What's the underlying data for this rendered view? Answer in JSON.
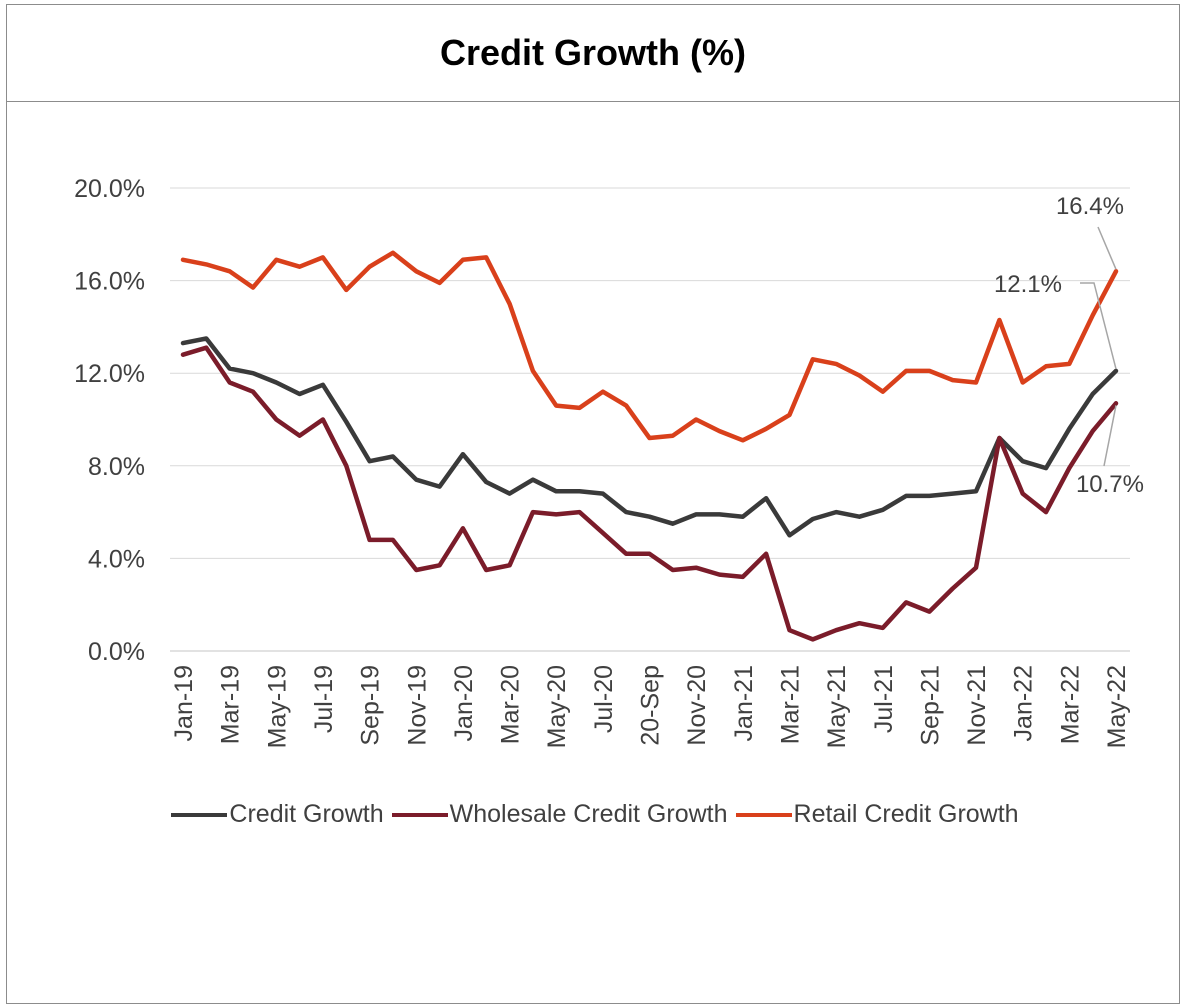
{
  "chart_data": {
    "type": "line",
    "title": "Credit Growth (%)",
    "xlabel": "",
    "ylabel": "",
    "ylim": [
      0,
      20
    ],
    "yticks": [
      "0.0%",
      "4.0%",
      "8.0%",
      "12.0%",
      "16.0%",
      "20.0%"
    ],
    "ytick_values": [
      0,
      4,
      8,
      12,
      16,
      20
    ],
    "x": [
      "Jan-19",
      "Feb-19",
      "Mar-19",
      "Apr-19",
      "May-19",
      "Jun-19",
      "Jul-19",
      "Aug-19",
      "Sep-19",
      "Oct-19",
      "Nov-19",
      "Dec-19",
      "Jan-20",
      "Feb-20",
      "Mar-20",
      "Apr-20",
      "May-20",
      "Jun-20",
      "Jul-20",
      "Aug-20",
      "20-Sep",
      "Oct-20",
      "Nov-20",
      "Dec-20",
      "Jan-21",
      "Feb-21",
      "Mar-21",
      "Apr-21",
      "May-21",
      "Jun-21",
      "Jul-21",
      "Aug-21",
      "Sep-21",
      "Oct-21",
      "Nov-21",
      "Dec-21",
      "Jan-22",
      "Feb-22",
      "Mar-22",
      "Apr-22",
      "May-22"
    ],
    "x_tick_labels": [
      "Jan-19",
      "Mar-19",
      "May-19",
      "Jul-19",
      "Sep-19",
      "Nov-19",
      "Jan-20",
      "Mar-20",
      "May-20",
      "Jul-20",
      "20-Sep",
      "Nov-20",
      "Jan-21",
      "Mar-21",
      "May-21",
      "Jul-21",
      "Sep-21",
      "Nov-21",
      "Jan-22",
      "Mar-22",
      "May-22"
    ],
    "grid": true,
    "legend_position": "bottom",
    "series": [
      {
        "name": "Credit Growth",
        "color": "#3a3a3a",
        "values": [
          13.3,
          13.5,
          12.2,
          12.0,
          11.6,
          11.1,
          11.5,
          9.9,
          8.2,
          8.4,
          7.4,
          7.1,
          8.5,
          7.3,
          6.8,
          7.4,
          6.9,
          6.9,
          6.8,
          6.0,
          5.8,
          5.5,
          5.9,
          5.9,
          5.8,
          6.6,
          5.0,
          5.7,
          6.0,
          5.8,
          6.1,
          6.7,
          6.7,
          6.8,
          6.9,
          9.2,
          8.2,
          7.9,
          9.6,
          11.1,
          12.1
        ]
      },
      {
        "name": "Wholesale Credit Growth",
        "color": "#7b1c2a",
        "values": [
          12.8,
          13.1,
          11.6,
          11.2,
          10.0,
          9.3,
          10.0,
          8.0,
          4.8,
          4.8,
          3.5,
          3.7,
          5.3,
          3.5,
          3.7,
          6.0,
          5.9,
          6.0,
          5.1,
          4.2,
          4.2,
          3.5,
          3.6,
          3.3,
          3.2,
          4.2,
          0.9,
          0.5,
          0.9,
          1.2,
          1.0,
          2.1,
          1.7,
          2.7,
          3.6,
          9.2,
          6.8,
          6.0,
          7.9,
          9.5,
          10.7
        ]
      },
      {
        "name": "Retail Credit Growth",
        "color": "#d9401b",
        "values": [
          16.9,
          16.7,
          16.4,
          15.7,
          16.9,
          16.6,
          17.0,
          15.6,
          16.6,
          17.2,
          16.4,
          15.9,
          16.9,
          17.0,
          15.0,
          12.1,
          10.6,
          10.5,
          11.2,
          10.6,
          9.2,
          9.3,
          10.0,
          9.5,
          9.1,
          9.6,
          10.2,
          12.6,
          12.4,
          11.9,
          11.2,
          12.1,
          12.1,
          11.7,
          11.6,
          14.3,
          11.6,
          12.3,
          12.4,
          14.5,
          16.4
        ]
      }
    ],
    "annotations": [
      "16.4%",
      "12.1%",
      "10.7%"
    ]
  }
}
